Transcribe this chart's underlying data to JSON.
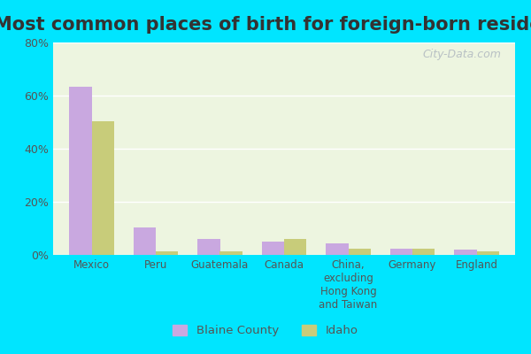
{
  "title": "Most common places of birth for foreign-born residents",
  "categories": [
    "Mexico",
    "Peru",
    "Guatemala",
    "Canada",
    "China,\nexcluding\nHong Kong\nand Taiwan",
    "Germany",
    "England"
  ],
  "blaine_county": [
    63.5,
    10.5,
    6.0,
    5.0,
    4.5,
    2.5,
    2.0
  ],
  "idaho": [
    50.5,
    1.5,
    1.5,
    6.0,
    2.5,
    2.5,
    1.5
  ],
  "blaine_color": "#c9a8e0",
  "idaho_color": "#c8cc7a",
  "ylim": [
    0,
    80
  ],
  "yticks": [
    0,
    20,
    40,
    60,
    80
  ],
  "ytick_labels": [
    "0%",
    "20%",
    "40%",
    "60%",
    "80%"
  ],
  "background_outer": "#00e5ff",
  "background_plot": "#edf5e0",
  "title_fontsize": 15,
  "watermark": "City-Data.com",
  "bar_width": 0.35
}
